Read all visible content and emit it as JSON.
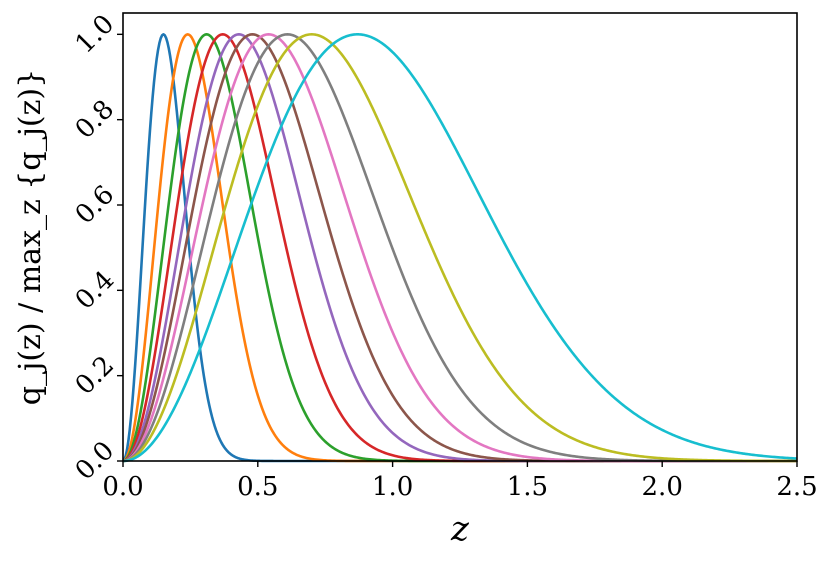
{
  "chart_data": {
    "type": "line",
    "title": "",
    "xlabel": "z",
    "ylabel": "q_j(z) / max_z {q_j(z)}",
    "xlim": [
      0.0,
      2.5
    ],
    "ylim": [
      0.0,
      1.05
    ],
    "x_ticks": [
      "0.0",
      "0.5",
      "1.0",
      "1.5",
      "2.0",
      "2.5"
    ],
    "y_ticks": [
      "0.0",
      "0.2",
      "0.4",
      "0.6",
      "0.8",
      "1.0"
    ],
    "grid": false,
    "legend": "none",
    "curve_model": "y = (z/z_peak)^2 * exp(1 - (z/z_peak)^2)",
    "series": [
      {
        "color": "#1f77b4",
        "peak_z": 0.15
      },
      {
        "color": "#ff7f0e",
        "peak_z": 0.24
      },
      {
        "color": "#2ca02c",
        "peak_z": 0.31
      },
      {
        "color": "#d62728",
        "peak_z": 0.37
      },
      {
        "color": "#9467bd",
        "peak_z": 0.43
      },
      {
        "color": "#8c564b",
        "peak_z": 0.48
      },
      {
        "color": "#e377c2",
        "peak_z": 0.54
      },
      {
        "color": "#7f7f7f",
        "peak_z": 0.61
      },
      {
        "color": "#bcbd22",
        "peak_z": 0.7
      },
      {
        "color": "#17becf",
        "peak_z": 0.87
      }
    ]
  }
}
